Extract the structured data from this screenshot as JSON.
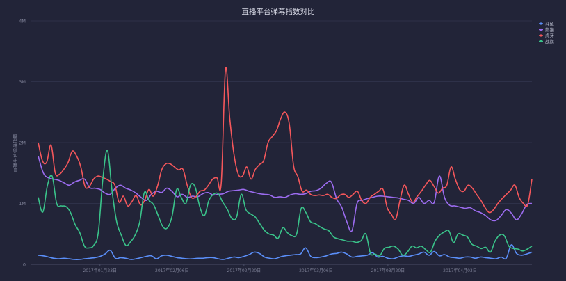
{
  "chart_data": {
    "type": "line",
    "title": "直播平台弹幕指数对比",
    "ylabel": "直播平台弹幕指数",
    "xlabel": "",
    "ylim": [
      0,
      4000000
    ],
    "y_ticks": [
      "0",
      "1M",
      "2M",
      "3M",
      "4M"
    ],
    "x_tick_labels": [
      {
        "label": "2017年01月23日",
        "index": 12
      },
      {
        "label": "2017年02月06日",
        "index": 26
      },
      {
        "label": "2017年02月20日",
        "index": 40
      },
      {
        "label": "2017年03月06日",
        "index": 54
      },
      {
        "label": "2017年03月20日",
        "index": 68
      },
      {
        "label": "2017年04月03日",
        "index": 82
      }
    ],
    "legend_position": "top-right",
    "grid": true,
    "series": [
      {
        "name": "斗鱼",
        "color": "#5b8ff9",
        "values": [
          150000,
          140000,
          120000,
          100000,
          90000,
          100000,
          90000,
          80000,
          80000,
          90000,
          100000,
          110000,
          130000,
          170000,
          230000,
          100000,
          110000,
          100000,
          80000,
          90000,
          110000,
          130000,
          140000,
          90000,
          140000,
          150000,
          130000,
          110000,
          100000,
          90000,
          90000,
          100000,
          100000,
          110000,
          110000,
          90000,
          80000,
          100000,
          120000,
          110000,
          130000,
          160000,
          200000,
          180000,
          120000,
          100000,
          90000,
          120000,
          140000,
          150000,
          160000,
          170000,
          270000,
          130000,
          110000,
          120000,
          140000,
          170000,
          180000,
          200000,
          170000,
          120000,
          130000,
          140000,
          150000,
          190000,
          120000,
          130000,
          100000,
          90000,
          120000,
          140000,
          130000,
          150000,
          170000,
          200000,
          150000,
          210000,
          140000,
          160000,
          120000,
          110000,
          100000,
          120000,
          120000,
          100000,
          120000,
          110000,
          100000,
          90000,
          120000,
          100000,
          320000,
          180000,
          150000,
          170000,
          200000
        ]
      },
      {
        "name": "熊猫",
        "color": "#9c6cf0",
        "values": [
          1780000,
          1500000,
          1420000,
          1400000,
          1380000,
          1340000,
          1300000,
          1350000,
          1380000,
          1400000,
          1260000,
          1250000,
          1230000,
          1170000,
          1150000,
          1250000,
          1300000,
          1250000,
          1220000,
          1170000,
          1100000,
          1050000,
          1150000,
          1200000,
          1180000,
          1250000,
          1200000,
          1110000,
          1150000,
          1100000,
          1120000,
          1110000,
          1160000,
          1180000,
          1140000,
          1150000,
          1160000,
          1200000,
          1210000,
          1220000,
          1230000,
          1200000,
          1180000,
          1160000,
          1150000,
          1140000,
          1100000,
          1110000,
          1100000,
          1140000,
          1160000,
          1150000,
          1160000,
          1200000,
          1210000,
          1250000,
          1330000,
          1350000,
          1080000,
          940000,
          700000,
          550000,
          1000000,
          1050000,
          1080000,
          1100000,
          1120000,
          1120000,
          1110000,
          1100000,
          1090000,
          1070000,
          1050000,
          1000000,
          1100000,
          1000000,
          1050000,
          1020000,
          1450000,
          1100000,
          970000,
          960000,
          940000,
          920000,
          930000,
          880000,
          850000,
          800000,
          730000,
          720000,
          800000,
          900000,
          840000,
          730000,
          830000,
          980000,
          1000000
        ]
      },
      {
        "name": "虎牙",
        "color": "#f5575b",
        "values": [
          2000000,
          1700000,
          1680000,
          1960000,
          1500000,
          1480000,
          1560000,
          1670000,
          1860000,
          1780000,
          1600000,
          1280000,
          1280000,
          1400000,
          1450000,
          1430000,
          1400000,
          1360000,
          1300000,
          1020000,
          1120000,
          960000,
          1030000,
          1130000,
          980000,
          1050000,
          1230000,
          1120000,
          1280000,
          1550000,
          1650000,
          1650000,
          1600000,
          1550000,
          1560000,
          1300000,
          1100000,
          1110000,
          1200000,
          1220000,
          1300000,
          1400000,
          1420000,
          1340000,
          3200000,
          2400000,
          1800000,
          1480000,
          1450000,
          1600000,
          1400000,
          1560000,
          1640000,
          1710000,
          2000000,
          2100000,
          2200000,
          2400000,
          2500000,
          2300000,
          1620000,
          1440000,
          1200000,
          1220000,
          1150000,
          1130000,
          1140000,
          1130000,
          1150000,
          1100000,
          1080000,
          1140000,
          1150000,
          1100000,
          1150000,
          1200000,
          1050000,
          1000000,
          1100000,
          1150000,
          1200000,
          1230000,
          930000,
          820000,
          740000,
          1050000,
          1300000,
          1150000,
          1020000,
          1110000,
          1200000,
          1300000,
          1380000,
          1280000,
          1170000,
          1250000,
          1300000,
          1600000,
          1400000,
          1230000,
          1200000,
          1300000,
          1250000,
          1150000,
          1050000,
          930000,
          850000,
          900000,
          1000000,
          1080000,
          1150000,
          1220000,
          1300000,
          1100000,
          1000000,
          980000,
          1400000
        ]
      },
      {
        "name": "战旗",
        "color": "#3ac38a",
        "values": [
          1100000,
          860000,
          1300000,
          1450000,
          1000000,
          960000,
          950000,
          850000,
          650000,
          520000,
          300000,
          270000,
          310000,
          520000,
          1400000,
          1870000,
          1200000,
          700000,
          480000,
          310000,
          370000,
          480000,
          700000,
          1180000,
          1050000,
          980000,
          800000,
          620000,
          600000,
          790000,
          1230000,
          1100000,
          1000000,
          1300000,
          1270000,
          950000,
          800000,
          1050000,
          1150000,
          1160000,
          1020000,
          900000,
          750000,
          780000,
          1150000,
          900000,
          830000,
          780000,
          670000,
          560000,
          500000,
          480000,
          430000,
          600000,
          520000,
          470000,
          500000,
          920000,
          850000,
          700000,
          670000,
          620000,
          580000,
          550000,
          450000,
          420000,
          400000,
          380000,
          380000,
          360000,
          390000,
          500000,
          180000,
          170000,
          140000,
          260000,
          280000,
          300000,
          250000,
          150000,
          200000,
          300000,
          270000,
          300000,
          240000,
          200000,
          380000,
          480000,
          530000,
          550000,
          360000,
          500000,
          480000,
          450000,
          330000,
          300000,
          260000,
          280000,
          200000,
          380000,
          480000,
          470000,
          300000,
          260000,
          250000,
          220000,
          250000,
          300000
        ]
      }
    ]
  }
}
